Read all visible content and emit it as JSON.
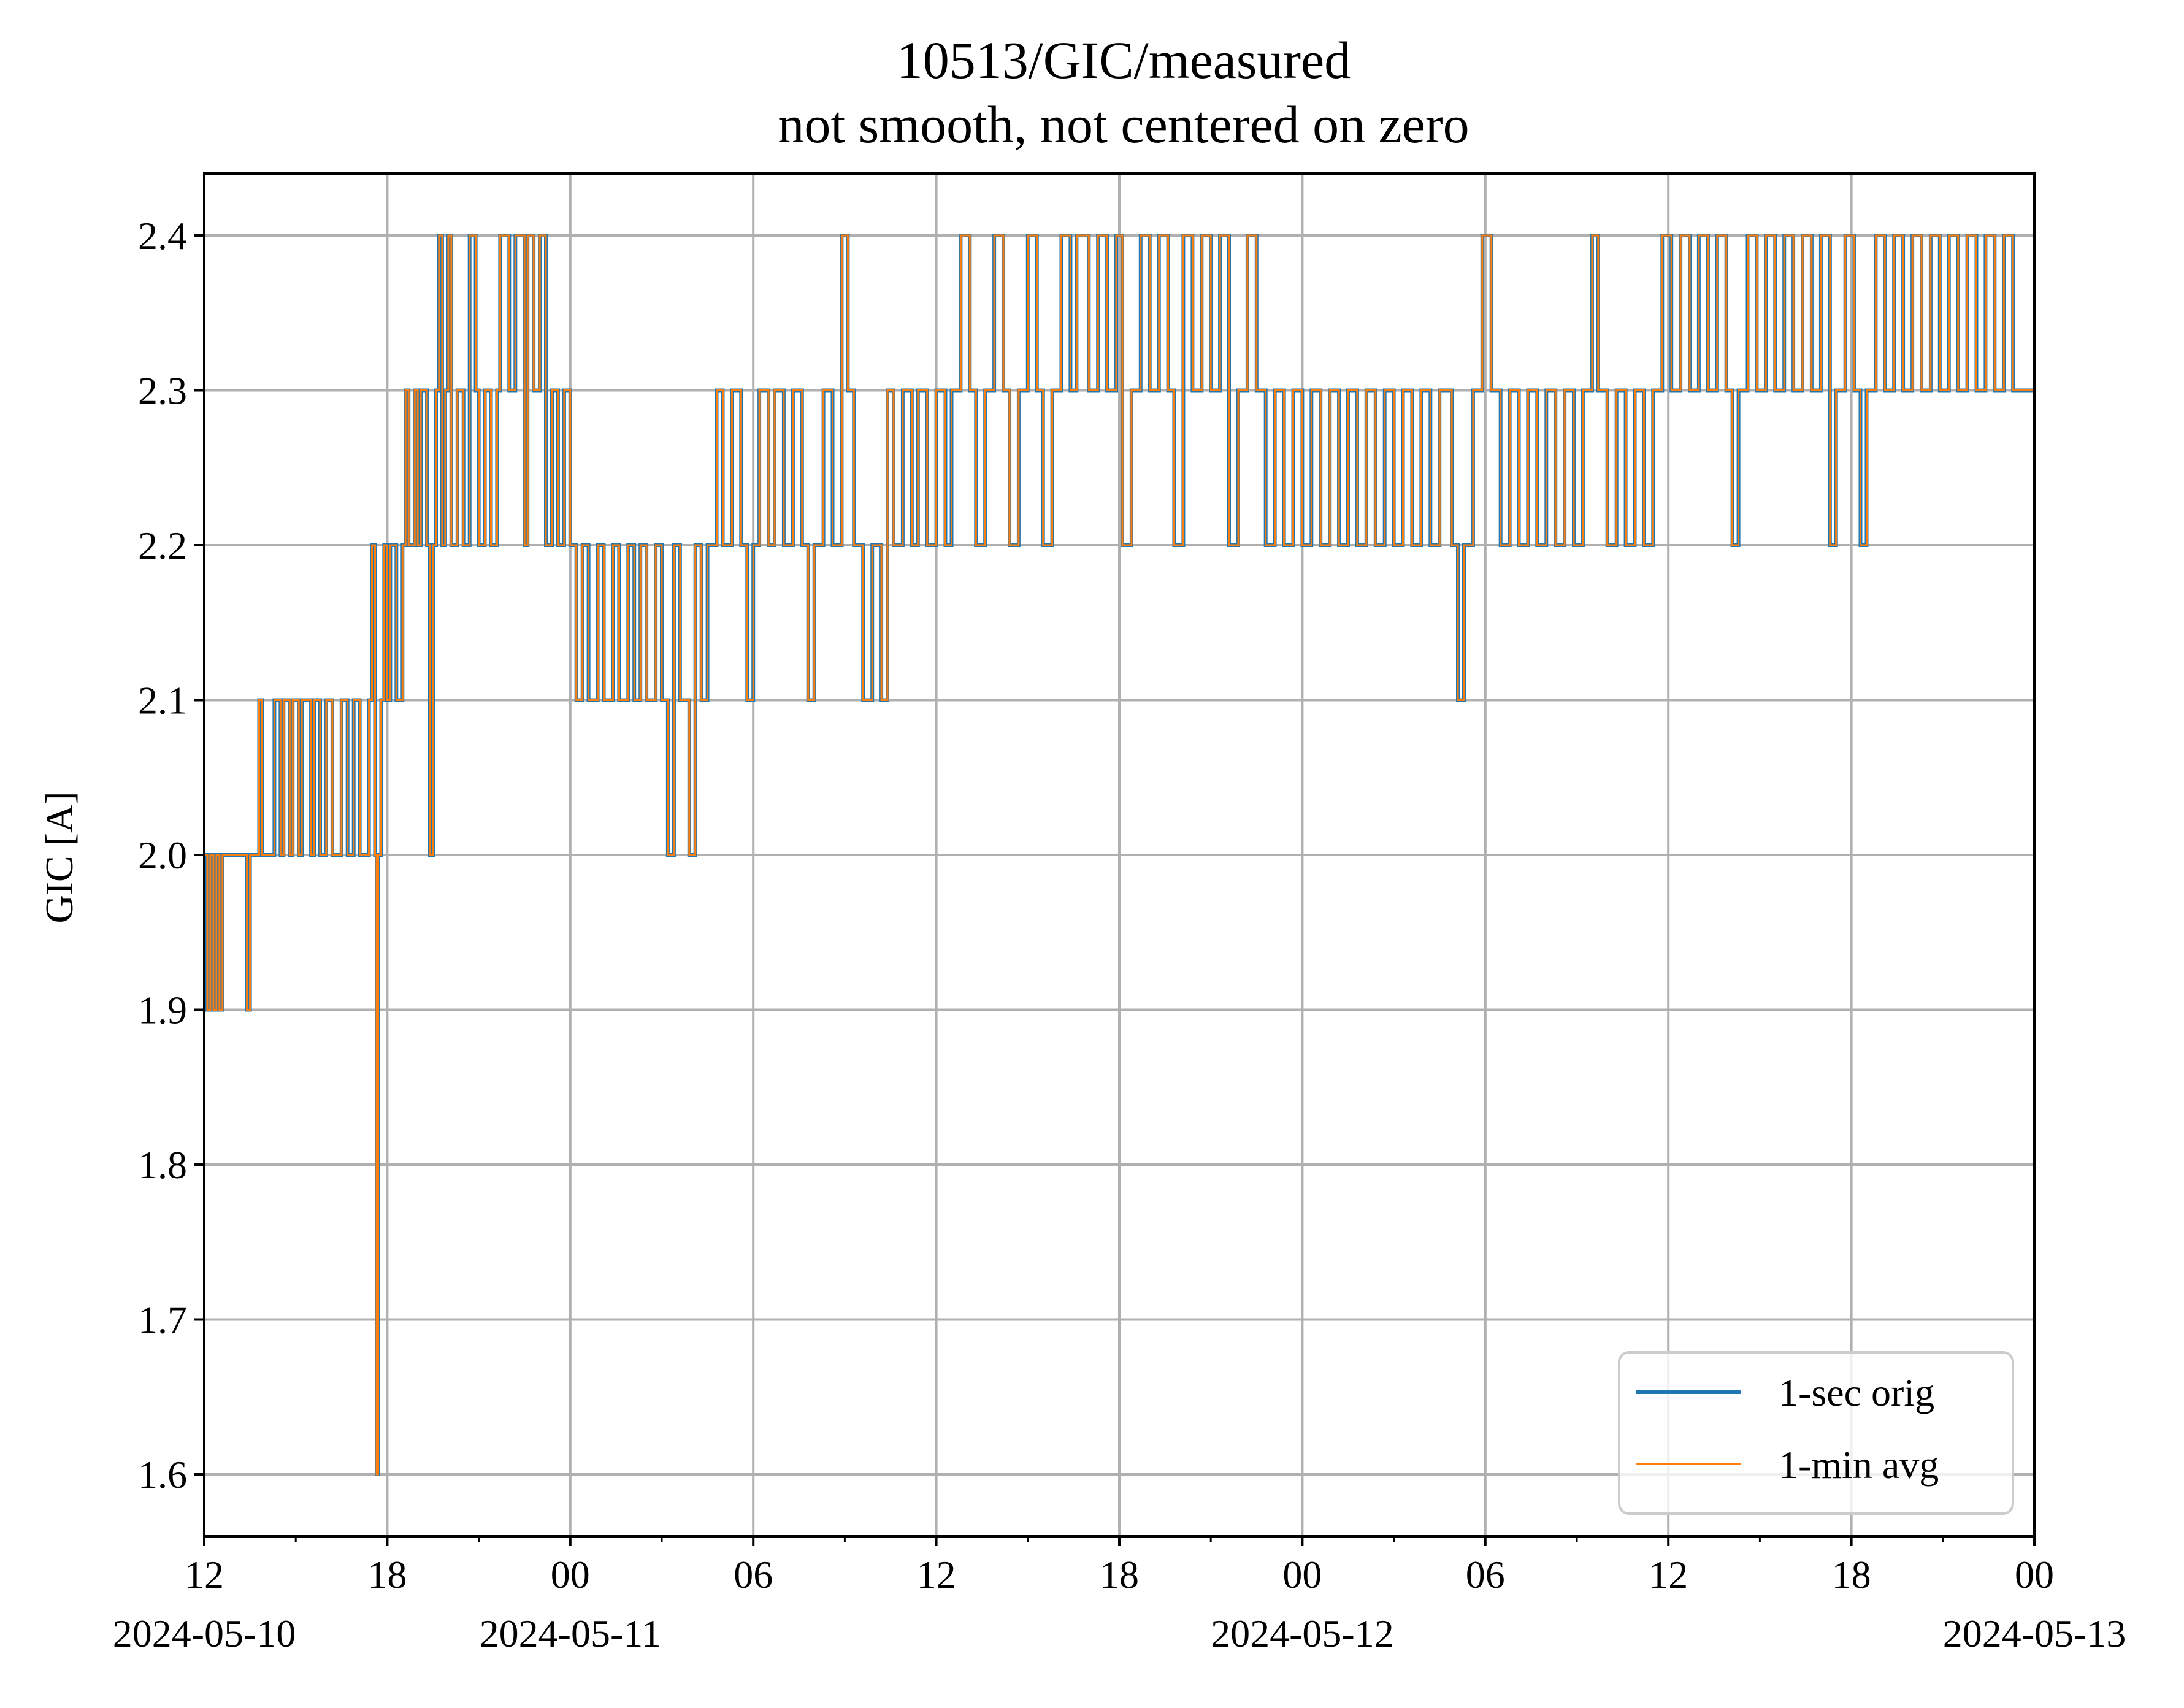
{
  "chart_data": {
    "type": "line",
    "title": "10513/GIC/measured",
    "subtitle": "not smooth, not centered on zero",
    "xlabel": "",
    "ylabel": "GIC [A]",
    "x_unit": "hours since 2024-05-10 00:00",
    "xlim": [
      12,
      72
    ],
    "ylim": [
      1.56,
      2.44
    ],
    "y_ticks": [
      1.6,
      1.7,
      1.8,
      1.9,
      2.0,
      2.1,
      2.2,
      2.3,
      2.4
    ],
    "y_tick_labels": [
      "1.6",
      "1.7",
      "1.8",
      "1.9",
      "2.0",
      "2.1",
      "2.2",
      "2.3",
      "2.4"
    ],
    "x_major_ticks": [
      {
        "x": 12,
        "label": "12",
        "date": "2024-05-10"
      },
      {
        "x": 18,
        "label": "18",
        "date": ""
      },
      {
        "x": 24,
        "label": "00",
        "date": "2024-05-11"
      },
      {
        "x": 30,
        "label": "06",
        "date": ""
      },
      {
        "x": 36,
        "label": "12",
        "date": ""
      },
      {
        "x": 42,
        "label": "18",
        "date": ""
      },
      {
        "x": 48,
        "label": "00",
        "date": "2024-05-12"
      },
      {
        "x": 54,
        "label": "06",
        "date": ""
      },
      {
        "x": 60,
        "label": "12",
        "date": ""
      },
      {
        "x": 66,
        "label": "18",
        "date": ""
      },
      {
        "x": 72,
        "label": "00",
        "date": "2024-05-13"
      }
    ],
    "x_minor_ticks": [
      15,
      21,
      27,
      33,
      39,
      45,
      51,
      57,
      63,
      69
    ],
    "grid": true,
    "legend_position": "lower-right",
    "series": [
      {
        "name": "1-sec orig",
        "color": "#1f77b4",
        "data": [
          [
            12.0,
            2.0
          ],
          [
            12.1,
            1.9
          ],
          [
            12.2,
            2.0
          ],
          [
            12.3,
            1.9
          ],
          [
            12.4,
            2.0
          ],
          [
            12.5,
            1.9
          ],
          [
            12.6,
            2.0
          ],
          [
            13.0,
            2.0
          ],
          [
            13.4,
            1.9
          ],
          [
            13.5,
            2.0
          ],
          [
            13.7,
            2.0
          ],
          [
            13.8,
            2.1
          ],
          [
            13.9,
            2.0
          ],
          [
            14.2,
            2.0
          ],
          [
            14.3,
            2.1
          ],
          [
            14.5,
            2.0
          ],
          [
            14.6,
            2.1
          ],
          [
            14.8,
            2.0
          ],
          [
            14.9,
            2.1
          ],
          [
            15.1,
            2.0
          ],
          [
            15.2,
            2.1
          ],
          [
            15.5,
            2.0
          ],
          [
            15.6,
            2.1
          ],
          [
            15.8,
            2.0
          ],
          [
            16.0,
            2.1
          ],
          [
            16.2,
            2.0
          ],
          [
            16.5,
            2.1
          ],
          [
            16.7,
            2.0
          ],
          [
            16.9,
            2.1
          ],
          [
            17.1,
            2.0
          ],
          [
            17.3,
            2.0
          ],
          [
            17.4,
            2.1
          ],
          [
            17.5,
            2.2
          ],
          [
            17.6,
            2.0
          ],
          [
            17.65,
            1.6
          ],
          [
            17.7,
            2.0
          ],
          [
            17.8,
            2.1
          ],
          [
            17.9,
            2.2
          ],
          [
            18.0,
            2.1
          ],
          [
            18.1,
            2.2
          ],
          [
            18.3,
            2.1
          ],
          [
            18.5,
            2.2
          ],
          [
            18.6,
            2.3
          ],
          [
            18.7,
            2.2
          ],
          [
            18.9,
            2.3
          ],
          [
            19.0,
            2.2
          ],
          [
            19.1,
            2.3
          ],
          [
            19.3,
            2.2
          ],
          [
            19.4,
            2.0
          ],
          [
            19.5,
            2.2
          ],
          [
            19.6,
            2.3
          ],
          [
            19.7,
            2.4
          ],
          [
            19.8,
            2.2
          ],
          [
            19.9,
            2.3
          ],
          [
            20.0,
            2.4
          ],
          [
            20.1,
            2.2
          ],
          [
            20.3,
            2.3
          ],
          [
            20.5,
            2.2
          ],
          [
            20.7,
            2.4
          ],
          [
            20.9,
            2.3
          ],
          [
            21.0,
            2.2
          ],
          [
            21.2,
            2.3
          ],
          [
            21.4,
            2.2
          ],
          [
            21.6,
            2.3
          ],
          [
            21.7,
            2.4
          ],
          [
            22.0,
            2.3
          ],
          [
            22.2,
            2.4
          ],
          [
            22.5,
            2.2
          ],
          [
            22.6,
            2.4
          ],
          [
            22.8,
            2.3
          ],
          [
            23.0,
            2.4
          ],
          [
            23.2,
            2.2
          ],
          [
            23.4,
            2.3
          ],
          [
            23.6,
            2.2
          ],
          [
            23.8,
            2.3
          ],
          [
            24.0,
            2.2
          ],
          [
            24.2,
            2.1
          ],
          [
            24.4,
            2.2
          ],
          [
            24.6,
            2.1
          ],
          [
            24.9,
            2.2
          ],
          [
            25.1,
            2.1
          ],
          [
            25.4,
            2.2
          ],
          [
            25.6,
            2.1
          ],
          [
            25.9,
            2.2
          ],
          [
            26.1,
            2.1
          ],
          [
            26.3,
            2.2
          ],
          [
            26.5,
            2.1
          ],
          [
            26.8,
            2.2
          ],
          [
            27.0,
            2.1
          ],
          [
            27.2,
            2.0
          ],
          [
            27.4,
            2.2
          ],
          [
            27.6,
            2.1
          ],
          [
            27.9,
            2.0
          ],
          [
            28.1,
            2.2
          ],
          [
            28.3,
            2.1
          ],
          [
            28.5,
            2.2
          ],
          [
            28.8,
            2.3
          ],
          [
            29.0,
            2.2
          ],
          [
            29.3,
            2.3
          ],
          [
            29.6,
            2.2
          ],
          [
            29.8,
            2.1
          ],
          [
            30.0,
            2.2
          ],
          [
            30.2,
            2.3
          ],
          [
            30.5,
            2.2
          ],
          [
            30.7,
            2.3
          ],
          [
            31.0,
            2.2
          ],
          [
            31.3,
            2.3
          ],
          [
            31.6,
            2.2
          ],
          [
            31.8,
            2.1
          ],
          [
            32.0,
            2.2
          ],
          [
            32.3,
            2.3
          ],
          [
            32.6,
            2.2
          ],
          [
            32.9,
            2.4
          ],
          [
            33.1,
            2.3
          ],
          [
            33.3,
            2.2
          ],
          [
            33.6,
            2.1
          ],
          [
            33.9,
            2.2
          ],
          [
            34.2,
            2.1
          ],
          [
            34.4,
            2.3
          ],
          [
            34.6,
            2.2
          ],
          [
            34.9,
            2.3
          ],
          [
            35.2,
            2.2
          ],
          [
            35.4,
            2.3
          ],
          [
            35.7,
            2.2
          ],
          [
            36.0,
            2.3
          ],
          [
            36.3,
            2.2
          ],
          [
            36.5,
            2.3
          ],
          [
            36.8,
            2.4
          ],
          [
            37.1,
            2.3
          ],
          [
            37.3,
            2.2
          ],
          [
            37.6,
            2.3
          ],
          [
            37.9,
            2.4
          ],
          [
            38.2,
            2.3
          ],
          [
            38.4,
            2.2
          ],
          [
            38.7,
            2.3
          ],
          [
            39.0,
            2.4
          ],
          [
            39.3,
            2.3
          ],
          [
            39.5,
            2.2
          ],
          [
            39.8,
            2.3
          ],
          [
            40.1,
            2.4
          ],
          [
            40.4,
            2.3
          ],
          [
            40.6,
            2.4
          ],
          [
            41.0,
            2.3
          ],
          [
            41.3,
            2.4
          ],
          [
            41.6,
            2.3
          ],
          [
            41.9,
            2.4
          ],
          [
            42.1,
            2.2
          ],
          [
            42.4,
            2.3
          ],
          [
            42.7,
            2.4
          ],
          [
            43.0,
            2.3
          ],
          [
            43.3,
            2.4
          ],
          [
            43.6,
            2.3
          ],
          [
            43.8,
            2.2
          ],
          [
            44.1,
            2.4
          ],
          [
            44.4,
            2.3
          ],
          [
            44.7,
            2.4
          ],
          [
            45.0,
            2.3
          ],
          [
            45.3,
            2.4
          ],
          [
            45.6,
            2.2
          ],
          [
            45.9,
            2.3
          ],
          [
            46.2,
            2.4
          ],
          [
            46.5,
            2.3
          ],
          [
            46.8,
            2.2
          ],
          [
            47.1,
            2.3
          ],
          [
            47.4,
            2.2
          ],
          [
            47.7,
            2.3
          ],
          [
            48.0,
            2.2
          ],
          [
            48.3,
            2.3
          ],
          [
            48.6,
            2.2
          ],
          [
            48.9,
            2.3
          ],
          [
            49.2,
            2.2
          ],
          [
            49.5,
            2.3
          ],
          [
            49.8,
            2.2
          ],
          [
            50.1,
            2.3
          ],
          [
            50.4,
            2.2
          ],
          [
            50.7,
            2.3
          ],
          [
            51.0,
            2.2
          ],
          [
            51.3,
            2.3
          ],
          [
            51.6,
            2.2
          ],
          [
            51.9,
            2.3
          ],
          [
            52.2,
            2.2
          ],
          [
            52.5,
            2.3
          ],
          [
            52.9,
            2.2
          ],
          [
            53.1,
            2.1
          ],
          [
            53.3,
            2.2
          ],
          [
            53.6,
            2.3
          ],
          [
            53.9,
            2.4
          ],
          [
            54.2,
            2.3
          ],
          [
            54.5,
            2.2
          ],
          [
            54.8,
            2.3
          ],
          [
            55.1,
            2.2
          ],
          [
            55.4,
            2.3
          ],
          [
            55.7,
            2.2
          ],
          [
            56.0,
            2.3
          ],
          [
            56.3,
            2.2
          ],
          [
            56.6,
            2.3
          ],
          [
            56.9,
            2.2
          ],
          [
            57.2,
            2.3
          ],
          [
            57.5,
            2.4
          ],
          [
            57.7,
            2.3
          ],
          [
            58.0,
            2.2
          ],
          [
            58.3,
            2.3
          ],
          [
            58.6,
            2.2
          ],
          [
            58.9,
            2.3
          ],
          [
            59.2,
            2.2
          ],
          [
            59.5,
            2.3
          ],
          [
            59.8,
            2.4
          ],
          [
            60.1,
            2.3
          ],
          [
            60.4,
            2.4
          ],
          [
            60.7,
            2.3
          ],
          [
            61.0,
            2.4
          ],
          [
            61.3,
            2.3
          ],
          [
            61.6,
            2.4
          ],
          [
            61.9,
            2.3
          ],
          [
            62.1,
            2.2
          ],
          [
            62.3,
            2.3
          ],
          [
            62.6,
            2.4
          ],
          [
            62.9,
            2.3
          ],
          [
            63.2,
            2.4
          ],
          [
            63.5,
            2.3
          ],
          [
            63.8,
            2.4
          ],
          [
            64.1,
            2.3
          ],
          [
            64.4,
            2.4
          ],
          [
            64.7,
            2.3
          ],
          [
            65.0,
            2.4
          ],
          [
            65.3,
            2.2
          ],
          [
            65.5,
            2.3
          ],
          [
            65.8,
            2.4
          ],
          [
            66.1,
            2.3
          ],
          [
            66.3,
            2.2
          ],
          [
            66.5,
            2.3
          ],
          [
            66.8,
            2.4
          ],
          [
            67.1,
            2.3
          ],
          [
            67.4,
            2.4
          ],
          [
            67.7,
            2.3
          ],
          [
            68.0,
            2.4
          ],
          [
            68.3,
            2.3
          ],
          [
            68.6,
            2.4
          ],
          [
            68.9,
            2.3
          ],
          [
            69.2,
            2.4
          ],
          [
            69.5,
            2.3
          ],
          [
            69.8,
            2.4
          ],
          [
            70.1,
            2.3
          ],
          [
            70.4,
            2.4
          ],
          [
            70.7,
            2.3
          ],
          [
            71.0,
            2.4
          ],
          [
            71.3,
            2.3
          ],
          [
            71.6,
            2.3
          ],
          [
            72.0,
            2.3
          ]
        ]
      },
      {
        "name": "1-min avg",
        "color": "#ff7f0e",
        "same_as_series": 0
      }
    ]
  }
}
